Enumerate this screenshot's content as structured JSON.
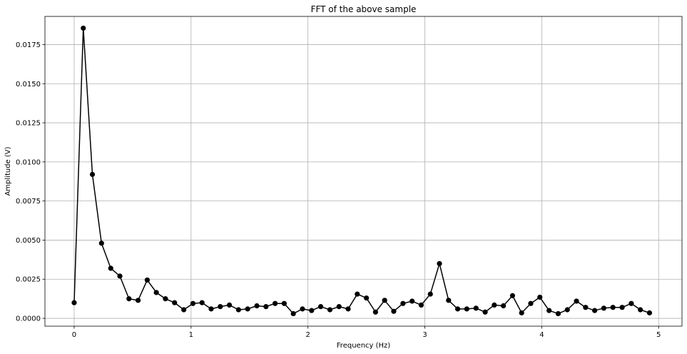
{
  "chart_data": {
    "type": "line",
    "title": "FFT of the above sample",
    "xlabel": "Frequency (Hz)",
    "ylabel": "Amplitude (V)",
    "xlim": [
      -0.25,
      5.2
    ],
    "ylim": [
      -0.0005,
      0.0193
    ],
    "xticks": [
      0,
      1,
      2,
      3,
      4,
      5
    ],
    "xtick_labels": [
      "0",
      "1",
      "2",
      "3",
      "4",
      "5"
    ],
    "yticks": [
      0.0,
      0.0025,
      0.005,
      0.0075,
      0.01,
      0.0125,
      0.015,
      0.0175
    ],
    "ytick_labels": [
      "0.0000",
      "0.0025",
      "0.0050",
      "0.0075",
      "0.0100",
      "0.0125",
      "0.0150",
      "0.0175"
    ],
    "grid": true,
    "line_color": "#000000",
    "marker": "circle",
    "series": [
      {
        "x": [
          0.0,
          0.078,
          0.156,
          0.234,
          0.313,
          0.391,
          0.469,
          0.547,
          0.625,
          0.703,
          0.781,
          0.859,
          0.938,
          1.016,
          1.094,
          1.172,
          1.25,
          1.328,
          1.406,
          1.484,
          1.563,
          1.641,
          1.719,
          1.797,
          1.875,
          1.953,
          2.031,
          2.109,
          2.188,
          2.266,
          2.344,
          2.422,
          2.5,
          2.578,
          2.656,
          2.734,
          2.813,
          2.891,
          2.969,
          3.047,
          3.125,
          3.203,
          3.281,
          3.359,
          3.438,
          3.516,
          3.594,
          3.672,
          3.75,
          3.828,
          3.906,
          3.984,
          4.063,
          4.141,
          4.219,
          4.297,
          4.375,
          4.453,
          4.531,
          4.609,
          4.688,
          4.766,
          4.844,
          4.922
        ],
        "values": [
          0.001,
          0.01855,
          0.0092,
          0.0048,
          0.0032,
          0.0027,
          0.00125,
          0.00115,
          0.00245,
          0.00165,
          0.00125,
          0.001,
          0.00055,
          0.00095,
          0.001,
          0.0006,
          0.00075,
          0.00085,
          0.00055,
          0.0006,
          0.0008,
          0.00075,
          0.00095,
          0.00095,
          0.0003,
          0.0006,
          0.0005,
          0.00075,
          0.00055,
          0.00075,
          0.0006,
          0.00155,
          0.0013,
          0.0004,
          0.00115,
          0.00045,
          0.00095,
          0.0011,
          0.00085,
          0.00155,
          0.0035,
          0.00115,
          0.0006,
          0.0006,
          0.00065,
          0.0004,
          0.00085,
          0.0008,
          0.00145,
          0.00035,
          0.00095,
          0.00135,
          0.0005,
          0.0003,
          0.00055,
          0.0011,
          0.0007,
          0.0005,
          0.00065,
          0.0007,
          0.0007,
          0.00095,
          0.00055,
          0.00035
        ]
      }
    ]
  }
}
